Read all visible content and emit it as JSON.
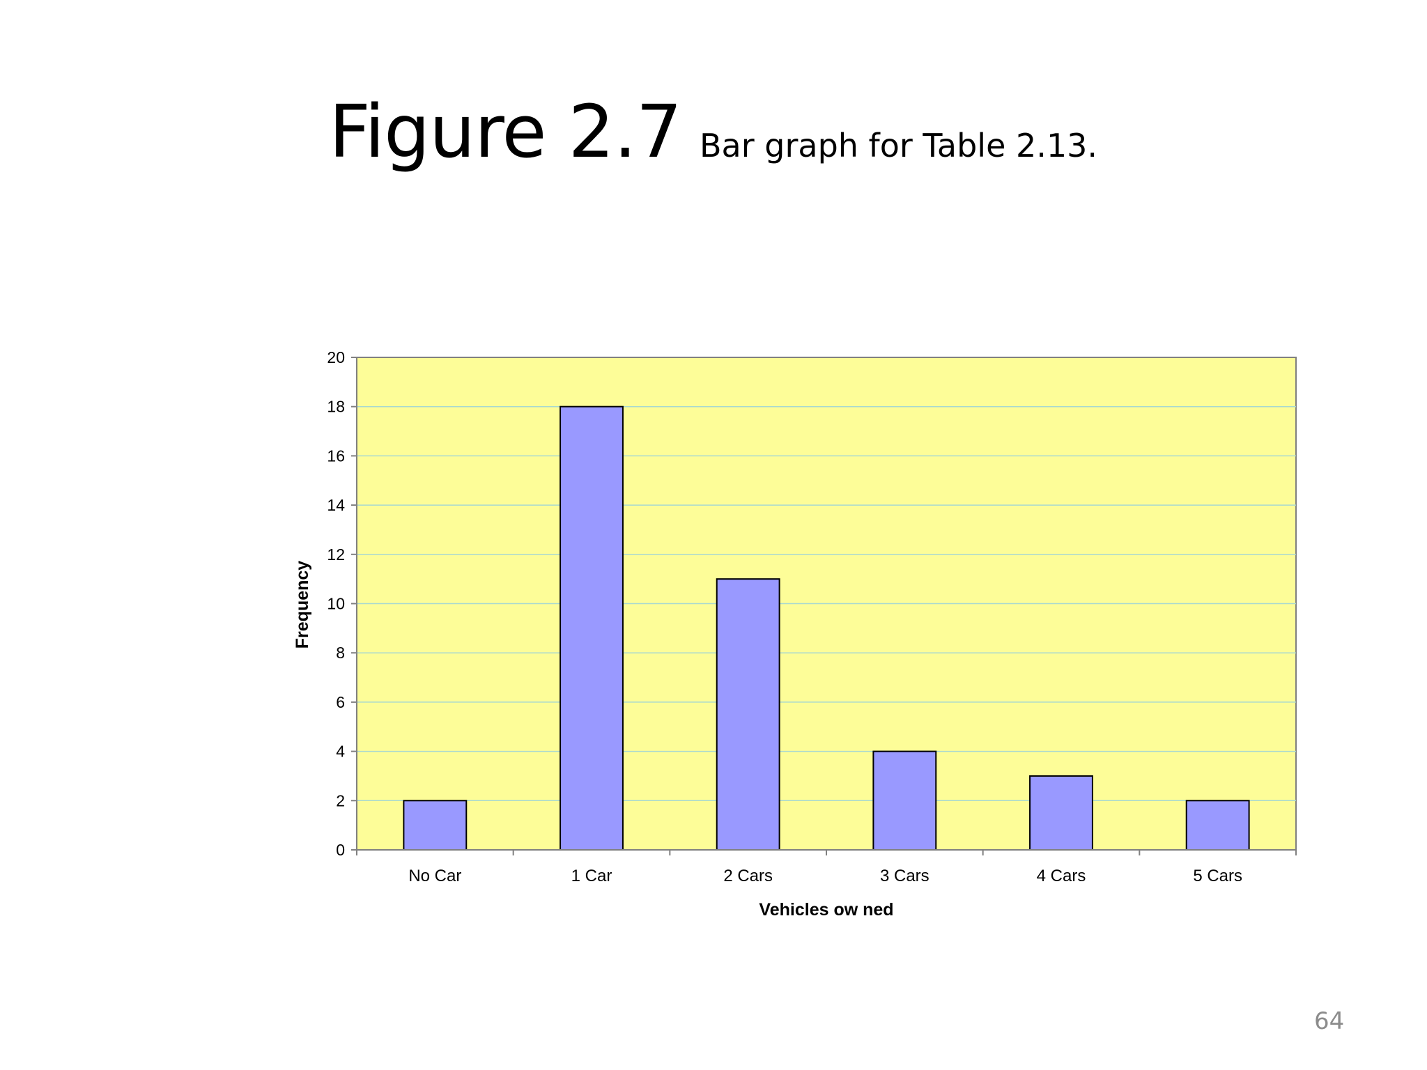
{
  "slide": {
    "title_main": "Figure 2.7",
    "title_sub": "Bar graph for Table 2.13.",
    "page_number": "64"
  },
  "colors": {
    "plot_background": "#fdfd98",
    "bar_fill": "#9999ff",
    "bar_stroke": "#000000",
    "gridline": "#a8d8d0"
  },
  "chart_data": {
    "type": "bar",
    "categories": [
      "No Car",
      "1 Car",
      "2 Cars",
      "3 Cars",
      "4 Cars",
      "5 Cars"
    ],
    "values": [
      2,
      18,
      11,
      4,
      3,
      2
    ],
    "title": "",
    "xlabel": "Vehicles ow ned",
    "ylabel": "Frequency",
    "ylim": [
      0,
      20
    ],
    "yticks": [
      0,
      2,
      4,
      6,
      8,
      10,
      12,
      14,
      16,
      18,
      20
    ],
    "grid": true,
    "legend": "none"
  }
}
